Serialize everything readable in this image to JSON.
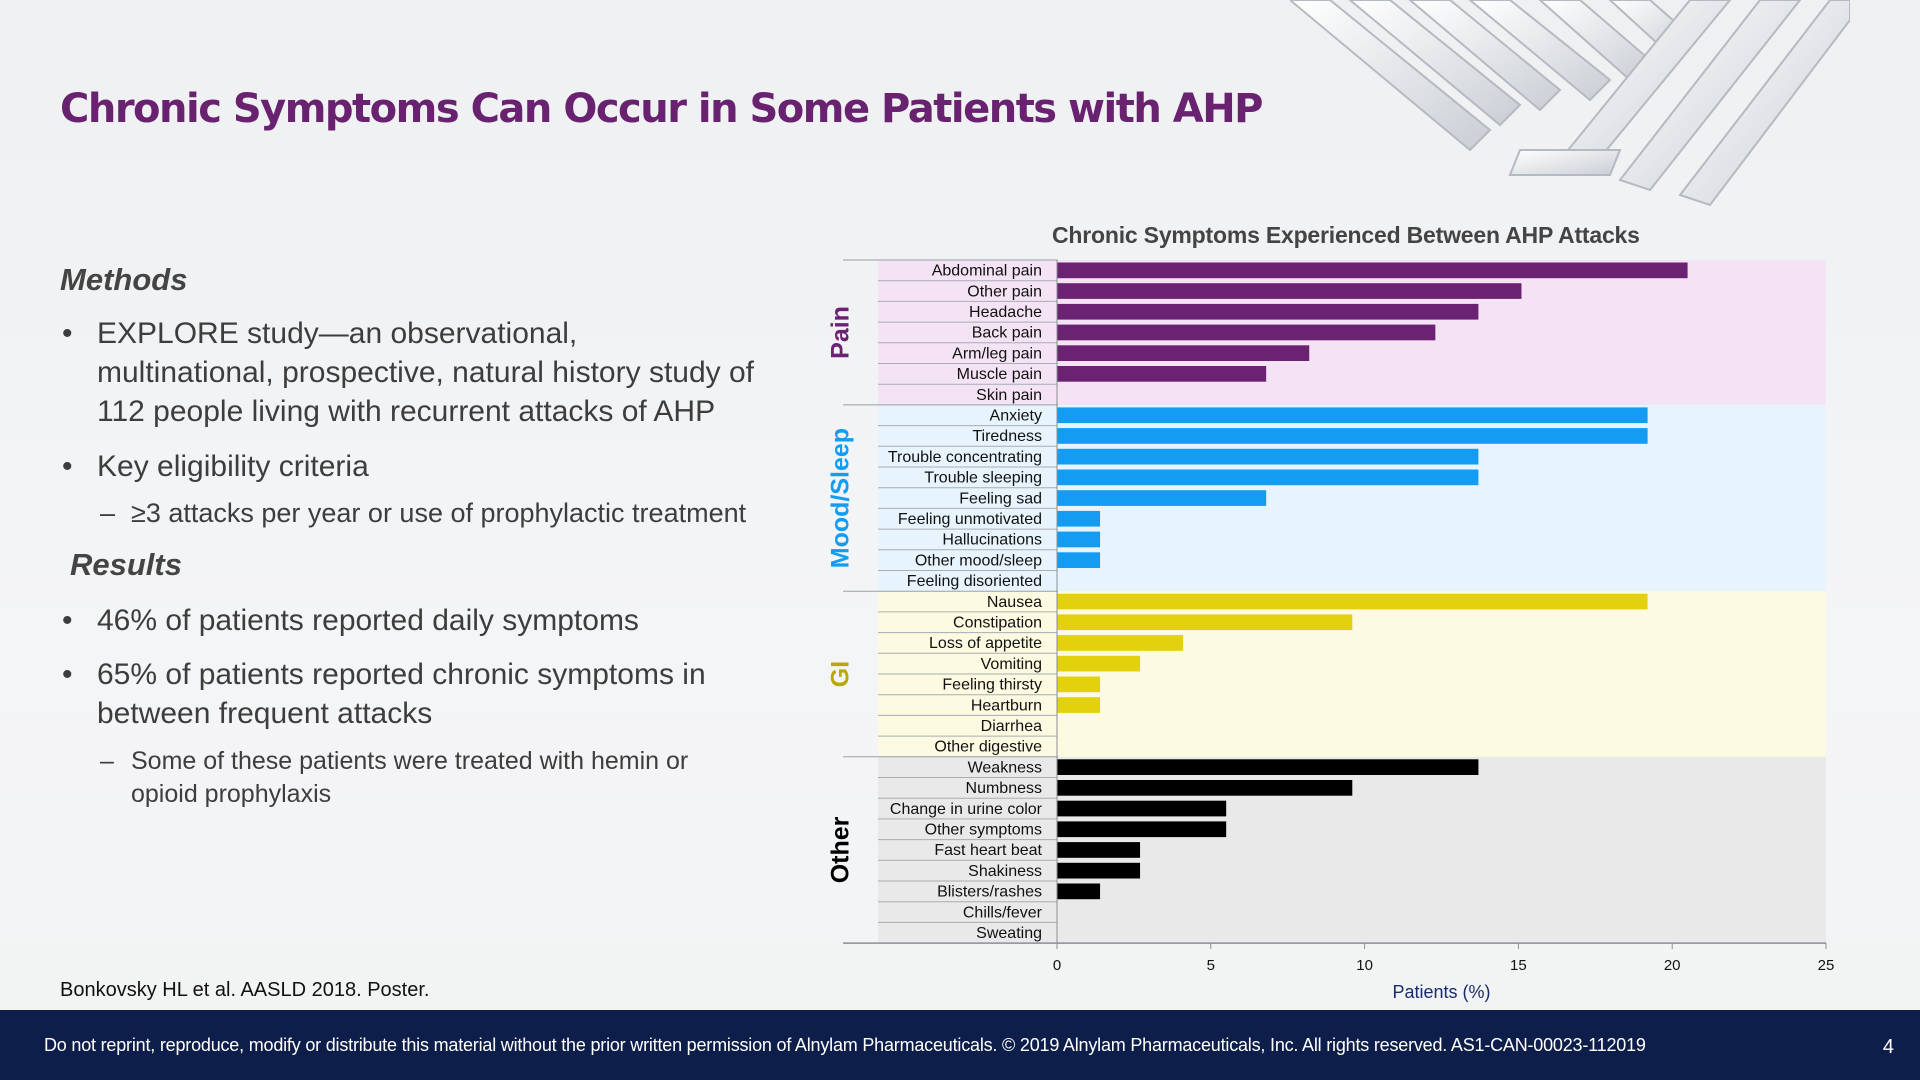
{
  "slide": {
    "title": "Chronic Symptoms Can Occur in Some Patients with AHP",
    "methods_heading": "Methods",
    "methods_bullets": [
      "EXPLORE study—an observational, multinational, prospective, natural history study of 112 people living with recurrent attacks of AHP",
      "Key eligibility criteria"
    ],
    "methods_sub": "≥3 attacks per year or use of prophylactic treatment",
    "results_heading": "Results",
    "results_bullets": [
      "46% of patients reported daily symptoms",
      "65% of patients reported chronic symptoms in between frequent attacks"
    ],
    "results_sub": "Some of these patients were treated with hemin or opioid prophylaxis",
    "citation": "Bonkovsky HL et al. AASLD 2018. Poster.",
    "footer": "Do not reprint, reproduce, modify or distribute this material without the prior written permission of Alnylam Pharmaceuticals. © 2019 Alnylam Pharmaceuticals, Inc. All rights reserved. AS1-CAN-00023-112019",
    "page_number": "4"
  },
  "colors": {
    "title": "#68226f",
    "footer_bg": "#0e1e4a"
  },
  "chart_data": {
    "type": "bar",
    "orientation": "horizontal",
    "title": "Chronic Symptoms Experienced Between AHP Attacks",
    "xlabel": "Patients (%)",
    "xlim": [
      0,
      25
    ],
    "xticks": [
      0,
      5,
      10,
      15,
      20,
      25
    ],
    "groups": [
      {
        "name": "Pain",
        "color": "#6b2272",
        "bg": "#f4e3f4",
        "label_color": "#6b2272",
        "items": [
          {
            "label": "Abdominal pain",
            "value": 20.5
          },
          {
            "label": "Other pain",
            "value": 15.1
          },
          {
            "label": "Headache",
            "value": 13.7
          },
          {
            "label": "Back pain",
            "value": 12.3
          },
          {
            "label": "Arm/leg pain",
            "value": 8.2
          },
          {
            "label": "Muscle pain",
            "value": 6.8
          },
          {
            "label": "Skin pain",
            "value": 0
          }
        ]
      },
      {
        "name": "Mood/Sleep",
        "color": "#139cf2",
        "bg": "#e7f4fd",
        "label_color": "#139cf2",
        "items": [
          {
            "label": "Anxiety",
            "value": 19.2
          },
          {
            "label": "Tiredness",
            "value": 19.2
          },
          {
            "label": "Trouble concentrating",
            "value": 13.7
          },
          {
            "label": "Trouble sleeping",
            "value": 13.7
          },
          {
            "label": "Feeling sad",
            "value": 6.8
          },
          {
            "label": "Feeling unmotivated",
            "value": 1.4
          },
          {
            "label": "Hallucinations",
            "value": 1.4
          },
          {
            "label": "Other mood/sleep",
            "value": 1.4
          },
          {
            "label": "Feeling disoriented",
            "value": 0
          }
        ]
      },
      {
        "name": "GI",
        "color": "#e2d10c",
        "bg": "#fdfae2",
        "label_color": "#b8a80a",
        "items": [
          {
            "label": "Nausea",
            "value": 19.2
          },
          {
            "label": "Constipation",
            "value": 9.6
          },
          {
            "label": "Loss of appetite",
            "value": 4.1
          },
          {
            "label": "Vomiting",
            "value": 2.7
          },
          {
            "label": "Feeling thirsty",
            "value": 1.4
          },
          {
            "label": "Heartburn",
            "value": 1.4
          },
          {
            "label": "Diarrhea",
            "value": 0
          },
          {
            "label": "Other digestive",
            "value": 0
          }
        ]
      },
      {
        "name": "Other",
        "color": "#000000",
        "bg": "#e9e9e9",
        "label_color": "#000000",
        "items": [
          {
            "label": "Weakness",
            "value": 13.7
          },
          {
            "label": "Numbness",
            "value": 9.6
          },
          {
            "label": "Change in urine color",
            "value": 5.5
          },
          {
            "label": "Other symptoms",
            "value": 5.5
          },
          {
            "label": "Fast heart beat",
            "value": 2.7
          },
          {
            "label": "Shakiness",
            "value": 2.7
          },
          {
            "label": "Blisters/rashes",
            "value": 1.4
          },
          {
            "label": "Chills/fever",
            "value": 0
          },
          {
            "label": "Sweating",
            "value": 0
          }
        ]
      }
    ]
  }
}
